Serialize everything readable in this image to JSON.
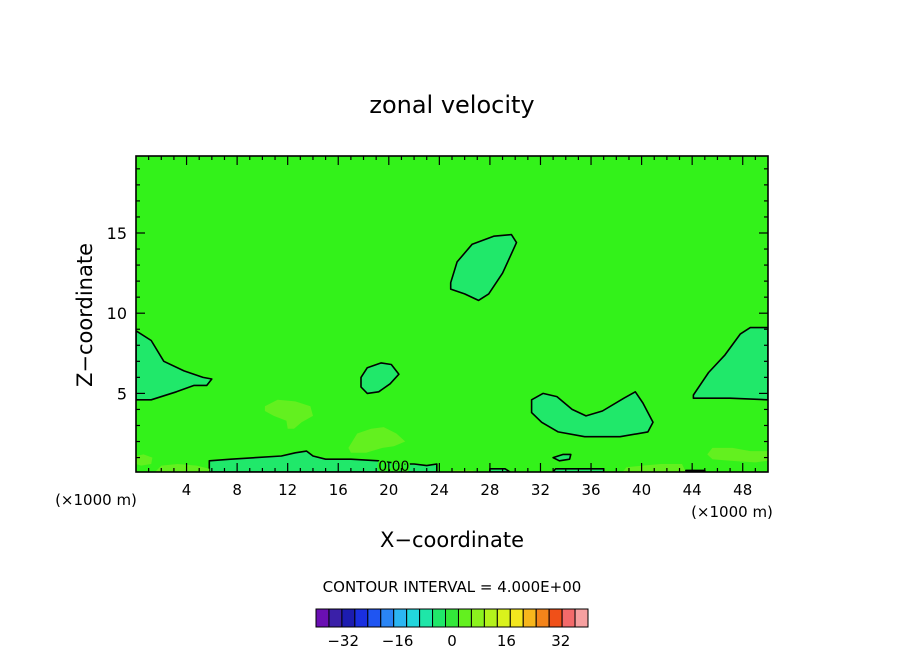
{
  "chart_data": {
    "type": "contour",
    "title": "zonal velocity",
    "xlabel": "X−coordinate",
    "ylabel": "Z−coordinate",
    "x_units_left": "(×1000 m)",
    "x_units_right": "(×1000 m)",
    "xlim": [
      0,
      50
    ],
    "ylim": [
      0.1,
      19.8
    ],
    "x_ticks": [
      4,
      8,
      12,
      16,
      20,
      24,
      28,
      32,
      36,
      40,
      44,
      48
    ],
    "y_ticks": [
      5,
      10,
      15
    ],
    "contour_label": "0.00",
    "contour_interval_text": "CONTOUR INTERVAL = 4.000E+00",
    "colorbar": {
      "tick_labels": [
        "−32",
        "−16",
        "0",
        "16",
        "32"
      ],
      "tick_values": [
        -32,
        -16,
        0,
        16,
        32
      ],
      "levels": [
        -40,
        -36,
        -32,
        -28,
        -24,
        -20,
        -16,
        -12,
        -8,
        -4,
        0,
        4,
        8,
        12,
        16,
        20,
        24,
        28,
        32,
        36,
        40
      ],
      "colors": [
        "#6a0fb3",
        "#3a20a8",
        "#1c1cb0",
        "#1a2fe0",
        "#1f55f2",
        "#2a85f5",
        "#2cb6f2",
        "#22d6dc",
        "#1fe6a8",
        "#20e86a",
        "#33e83a",
        "#63f01f",
        "#8cf21e",
        "#b4f21c",
        "#d9f21c",
        "#f4e61e",
        "#f7b61c",
        "#f4841a",
        "#f05018",
        "#f36a6a",
        "#f6a0a0"
      ]
    },
    "background_color": "#33f21a",
    "regions": [
      {
        "color": "#20e86a",
        "outline": true,
        "points": [
          [
            0,
            8.9
          ],
          [
            1.2,
            8.3
          ],
          [
            2.2,
            7.0
          ],
          [
            3.8,
            6.4
          ],
          [
            5.3,
            6.0
          ],
          [
            6.0,
            5.9
          ],
          [
            5.6,
            5.5
          ],
          [
            4.6,
            5.5
          ],
          [
            3.2,
            5.1
          ],
          [
            1.2,
            4.6
          ],
          [
            0,
            4.6
          ]
        ]
      },
      {
        "color": "#20e86a",
        "outline": true,
        "points": [
          [
            24.9,
            11.9
          ],
          [
            25.4,
            13.2
          ],
          [
            26.6,
            14.3
          ],
          [
            28.3,
            14.8
          ],
          [
            29.7,
            14.9
          ],
          [
            30.1,
            14.4
          ],
          [
            29.0,
            12.5
          ],
          [
            27.9,
            11.2
          ],
          [
            27.1,
            10.8
          ],
          [
            26.0,
            11.2
          ],
          [
            24.9,
            11.5
          ]
        ]
      },
      {
        "color": "#20e86a",
        "outline": true,
        "points": [
          [
            17.8,
            6.0
          ],
          [
            18.3,
            6.6
          ],
          [
            19.4,
            6.9
          ],
          [
            20.2,
            6.8
          ],
          [
            20.8,
            6.2
          ],
          [
            20.1,
            5.6
          ],
          [
            19.2,
            5.1
          ],
          [
            18.3,
            5.0
          ],
          [
            17.8,
            5.4
          ]
        ]
      },
      {
        "color": "#20e86a",
        "outline": true,
        "points": [
          [
            31.3,
            4.6
          ],
          [
            32.2,
            5.0
          ],
          [
            33.3,
            4.8
          ],
          [
            34.5,
            4.0
          ],
          [
            35.6,
            3.6
          ],
          [
            36.9,
            3.9
          ],
          [
            38.6,
            4.7
          ],
          [
            39.5,
            5.1
          ],
          [
            40.1,
            4.4
          ],
          [
            40.9,
            3.2
          ],
          [
            40.5,
            2.6
          ],
          [
            38.3,
            2.3
          ],
          [
            35.5,
            2.3
          ],
          [
            33.4,
            2.6
          ],
          [
            32.1,
            3.2
          ],
          [
            31.3,
            3.8
          ]
        ]
      },
      {
        "color": "#20e86a",
        "outline": true,
        "points": [
          [
            44.1,
            4.9
          ],
          [
            45.3,
            6.3
          ],
          [
            46.6,
            7.4
          ],
          [
            47.8,
            8.7
          ],
          [
            48.6,
            9.1
          ],
          [
            50,
            9.1
          ],
          [
            50,
            4.6
          ],
          [
            47.0,
            4.7
          ],
          [
            44.1,
            4.7
          ]
        ]
      },
      {
        "color": "#20e86a",
        "outline": true,
        "points": [
          [
            33.0,
            1.0
          ],
          [
            33.8,
            1.2
          ],
          [
            34.4,
            1.2
          ],
          [
            34.3,
            0.9
          ],
          [
            33.5,
            0.8
          ]
        ]
      },
      {
        "color": "#20e86a",
        "outline": true,
        "points": [
          [
            5.8,
            0.8
          ],
          [
            7.5,
            0.9
          ],
          [
            9.5,
            1.0
          ],
          [
            11.5,
            1.1
          ],
          [
            12.6,
            1.3
          ],
          [
            13.5,
            1.4
          ],
          [
            14.0,
            1.1
          ],
          [
            15.0,
            0.9
          ],
          [
            17.0,
            0.9
          ],
          [
            19.2,
            0.8
          ],
          [
            21.0,
            0.6
          ],
          [
            22.0,
            0.6
          ],
          [
            23.0,
            0.5
          ],
          [
            23.8,
            0.6
          ],
          [
            23.8,
            0.1
          ],
          [
            5.8,
            0.1
          ]
        ]
      },
      {
        "color": "#20e86a",
        "outline": true,
        "points": [
          [
            28.0,
            0.1
          ],
          [
            28.0,
            0.3
          ],
          [
            29.2,
            0.3
          ],
          [
            29.6,
            0.1
          ]
        ]
      },
      {
        "color": "#20e86a",
        "outline": true,
        "points": [
          [
            33.0,
            0.1
          ],
          [
            33.2,
            0.3
          ],
          [
            37.0,
            0.3
          ],
          [
            37.0,
            0.1
          ]
        ]
      },
      {
        "color": "#20e86a",
        "outline": true,
        "points": [
          [
            43.5,
            0.1
          ],
          [
            43.5,
            0.2
          ],
          [
            45.0,
            0.2
          ],
          [
            45.0,
            0.1
          ]
        ]
      },
      {
        "color": "#63f01f",
        "outline": false,
        "points": [
          [
            10.2,
            4.2
          ],
          [
            11.2,
            4.6
          ],
          [
            12.6,
            4.5
          ],
          [
            13.8,
            4.2
          ],
          [
            14.0,
            3.6
          ],
          [
            13.1,
            3.2
          ],
          [
            12.5,
            2.8
          ],
          [
            12.0,
            2.8
          ],
          [
            11.9,
            3.3
          ],
          [
            10.9,
            3.6
          ],
          [
            10.2,
            3.9
          ]
        ]
      },
      {
        "color": "#63f01f",
        "outline": false,
        "points": [
          [
            16.8,
            1.6
          ],
          [
            17.5,
            2.5
          ],
          [
            18.6,
            2.8
          ],
          [
            19.6,
            2.9
          ],
          [
            20.6,
            2.5
          ],
          [
            21.3,
            2.0
          ],
          [
            20.4,
            1.7
          ],
          [
            19.5,
            1.6
          ],
          [
            18.2,
            1.3
          ],
          [
            17.0,
            1.3
          ]
        ]
      },
      {
        "color": "#63f01f",
        "outline": false,
        "points": [
          [
            0,
            1.1
          ],
          [
            0.6,
            1.2
          ],
          [
            1.3,
            1.0
          ],
          [
            1.2,
            0.6
          ],
          [
            0.4,
            0.5
          ],
          [
            0,
            0.6
          ]
        ]
      },
      {
        "color": "#63f01f",
        "outline": false,
        "points": [
          [
            1.5,
            0.1
          ],
          [
            2.0,
            0.5
          ],
          [
            3.3,
            0.6
          ],
          [
            4.8,
            0.5
          ],
          [
            5.8,
            0.3
          ],
          [
            5.8,
            0.1
          ]
        ]
      },
      {
        "color": "#63f01f",
        "outline": false,
        "points": [
          [
            45.2,
            1.2
          ],
          [
            45.6,
            1.6
          ],
          [
            47.2,
            1.6
          ],
          [
            48.6,
            1.4
          ],
          [
            50,
            1.4
          ],
          [
            50,
            0.8
          ],
          [
            49.0,
            0.7
          ],
          [
            47.0,
            0.8
          ],
          [
            45.6,
            0.9
          ]
        ]
      },
      {
        "color": "#63f01f",
        "outline": false,
        "points": [
          [
            38.5,
            0.1
          ],
          [
            38.8,
            0.4
          ],
          [
            41.5,
            0.6
          ],
          [
            43.2,
            0.6
          ],
          [
            43.5,
            0.1
          ]
        ]
      },
      {
        "color": "#63f01f",
        "outline": false,
        "points": [
          [
            24.6,
            0.1
          ],
          [
            25.2,
            0.2
          ],
          [
            26.6,
            0.2
          ],
          [
            27.0,
            0.1
          ]
        ]
      }
    ]
  }
}
